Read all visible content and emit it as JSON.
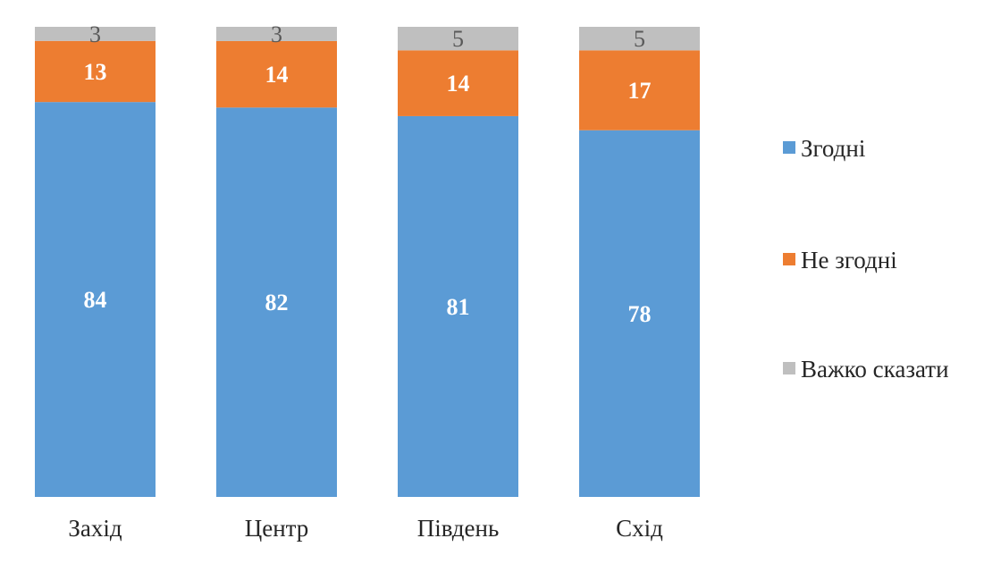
{
  "chart_data": {
    "type": "bar",
    "stacked": true,
    "categories": [
      "Захід",
      "Центр",
      "Південь",
      "Схід"
    ],
    "series": [
      {
        "name": "Згодні",
        "values": [
          84,
          82,
          81,
          78
        ],
        "color": "#5B9BD5"
      },
      {
        "name": "Не згодні",
        "values": [
          13,
          14,
          14,
          17
        ],
        "color": "#ED7D31"
      },
      {
        "name": "Важко сказати",
        "values": [
          3,
          3,
          5,
          5
        ],
        "color": "#BFBFBF"
      }
    ],
    "data_label_colors": [
      "#FFFFFF",
      "#FFFFFF",
      "#595959"
    ],
    "title": "",
    "xlabel": "",
    "ylabel": "",
    "grid": false,
    "legend_position": "right"
  }
}
